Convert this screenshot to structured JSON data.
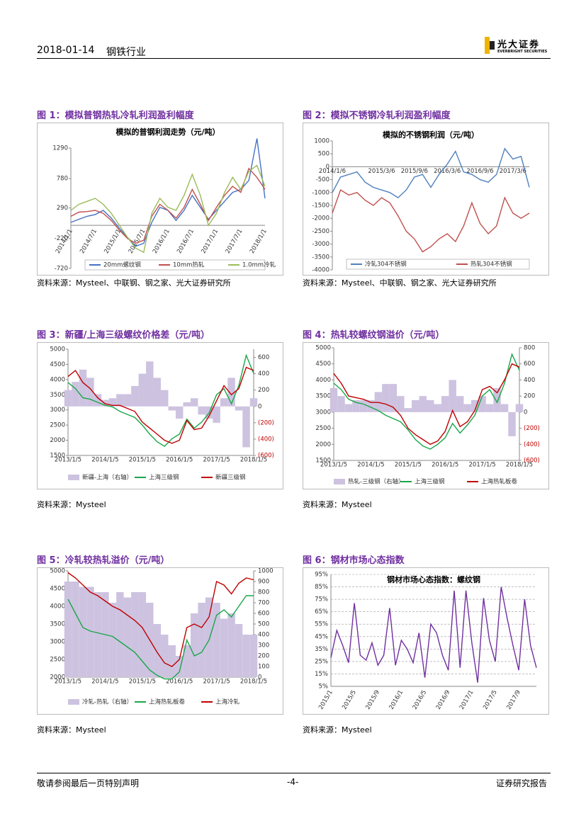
{
  "header": {
    "date": "2018-01-14",
    "industry": "钢铁行业",
    "logo_cn": "光大证券",
    "logo_en": "EVERBRIGHT SECURITIES"
  },
  "footer": {
    "left": "敬请参阅最后一页特别声明",
    "page": "-4-",
    "right": "证券研究报告"
  },
  "figures": [
    {
      "caption": "图 1：模拟普钢热轧冷轧利润盈利幅度",
      "source": "资料来源：Mysteel、中联钢、钢之家、光大证券研究所",
      "chart": {
        "type": "line",
        "title": "模拟的普钢利润走势（元/吨）",
        "categories": [
          "2014/1/1",
          null,
          null,
          "2014/7/1",
          null,
          null,
          "2015/1/1",
          null,
          null,
          "2015/7/1",
          null,
          null,
          "2016/1/1",
          null,
          null,
          "2016/7/1",
          null,
          null,
          "2017/1/1",
          null,
          null,
          "2017/7/1",
          null,
          null,
          "2018/1/1"
        ],
        "ylim": [
          -720,
          1290
        ],
        "yticks": [
          -720,
          -220,
          290,
          780,
          1290
        ],
        "legend": "bottom",
        "series": [
          {
            "name": "20mm螺纹钢",
            "color": "#4472c4",
            "values": [
              50,
              100,
              150,
              180,
              250,
              120,
              -50,
              -200,
              -350,
              -300,
              50,
              300,
              250,
              80,
              250,
              500,
              300,
              100,
              250,
              400,
              550,
              600,
              750,
              1450,
              450
            ]
          },
          {
            "name": "10mm热轧",
            "color": "#c0504d",
            "values": [
              150,
              220,
              230,
              250,
              200,
              80,
              -80,
              -220,
              -300,
              -250,
              150,
              350,
              250,
              120,
              300,
              600,
              350,
              80,
              300,
              500,
              650,
              550,
              950,
              800,
              600
            ]
          },
          {
            "name": "1.0mm冷轧",
            "color": "#9bbb59",
            "values": [
              250,
              350,
              400,
              450,
              350,
              200,
              0,
              -200,
              -380,
              -450,
              200,
              450,
              300,
              250,
              500,
              850,
              500,
              0,
              200,
              550,
              800,
              600,
              900,
              1000,
              650
            ]
          }
        ]
      }
    },
    {
      "caption": "图 2：模拟不锈钢冷轧利润盈利幅度",
      "source": "资料来源：Mysteel、中联钢、钢之家、光大证券研究所",
      "chart": {
        "type": "line",
        "title": "模拟的不锈钢利润（元/吨）",
        "categories": [
          "2014/1/6",
          null,
          null,
          null,
          null,
          null,
          "2015/3/6",
          null,
          null,
          null,
          "2015/9/6",
          null,
          null,
          null,
          "2016/3/6",
          null,
          null,
          null,
          "2016/9/6",
          null,
          null,
          null,
          "2017/3/6",
          null,
          null
        ],
        "ylim": [
          -4000,
          1000
        ],
        "yticks": [
          -4000,
          -3500,
          -3000,
          -2500,
          -2000,
          -1500,
          -1000,
          -500,
          0,
          500,
          1000
        ],
        "legend": "bottom",
        "series": [
          {
            "name": "冷轧304不锈钢",
            "color": "#4f81bd",
            "values": [
              -1000,
              -400,
              -300,
              -200,
              -600,
              -800,
              -900,
              -1000,
              -1200,
              -900,
              -400,
              -300,
              -800,
              -300,
              100,
              600,
              -200,
              -300,
              -500,
              -600,
              -300,
              700,
              300,
              400,
              -800
            ]
          },
          {
            "name": "热轧304不锈钢",
            "color": "#c0504d",
            "values": [
              -1800,
              -900,
              -1100,
              -1000,
              -1300,
              -1500,
              -1200,
              -1400,
              -1900,
              -2500,
              -2800,
              -3300,
              -3100,
              -2800,
              -2600,
              -2900,
              -2300,
              -1400,
              -2200,
              -2600,
              -2300,
              -1200,
              -1800,
              -2000,
              -1800
            ]
          }
        ]
      }
    },
    {
      "caption": "图 3：新疆/上海三级螺纹价格差（元/吨）",
      "source": "资料来源：Mysteel",
      "chart": {
        "type": "line",
        "categories": [
          "2013/1/5",
          null,
          null,
          null,
          null,
          "2014/1/5",
          null,
          null,
          null,
          null,
          "2015/1/5",
          null,
          null,
          null,
          null,
          "2016/1/5",
          null,
          null,
          null,
          null,
          "2017/1/5",
          null,
          null,
          null,
          null,
          "2018/1/5"
        ],
        "ylim": [
          1500,
          5000
        ],
        "yticks": [
          1500,
          2000,
          2500,
          3000,
          3500,
          4000,
          4500,
          5000
        ],
        "y2lim": [
          -600,
          700
        ],
        "y2ticks": [
          {
            "value": -600,
            "label": "(600)"
          },
          {
            "value": -400,
            "label": "(400)"
          },
          {
            "value": -200,
            "label": "(200)"
          },
          0,
          200,
          400,
          600
        ],
        "legend": "bottom",
        "series": [
          {
            "name": "新疆-上海（右轴）",
            "type": "area",
            "axis": "y2",
            "color": "#cdc3e0",
            "values": [
              200,
              300,
              450,
              350,
              150,
              80,
              100,
              150,
              150,
              250,
              400,
              550,
              350,
              200,
              -50,
              -150,
              50,
              100,
              -100,
              -150,
              -200,
              100,
              350,
              -50,
              -500,
              100
            ]
          },
          {
            "name": "上海三级钢",
            "color": "#1aa64a",
            "values": [
              3900,
              3700,
              3400,
              3350,
              3250,
              3150,
              3100,
              2950,
              2850,
              2750,
              2500,
              2200,
              1950,
              1800,
              2050,
              2200,
              2700,
              2400,
              2600,
              2900,
              3500,
              3700,
              3200,
              3800,
              4800,
              4200
            ]
          },
          {
            "name": "新疆三级钢",
            "color": "#c00000",
            "values": [
              4100,
              4300,
              3900,
              3700,
              3400,
              3200,
              3150,
              3150,
              3050,
              2950,
              2600,
              2400,
              2200,
              2000,
              1900,
              2000,
              2650,
              2350,
              2400,
              2800,
              3300,
              3800,
              3500,
              3700,
              4400,
              4300
            ]
          }
        ]
      }
    },
    {
      "caption": "图 4：热轧较螺纹钢溢价（元/吨）",
      "source": "资料来源：Mysteel",
      "chart": {
        "type": "line",
        "categories": [
          "2013/1/5",
          null,
          null,
          null,
          null,
          "2014/1/5",
          null,
          null,
          null,
          null,
          "2015/1/5",
          null,
          null,
          null,
          null,
          "2016/1/5",
          null,
          null,
          null,
          null,
          "2017/1/5",
          null,
          null,
          null,
          null,
          "2018/1/5"
        ],
        "ylim": [
          1500,
          5000
        ],
        "yticks": [
          1500,
          2000,
          2500,
          3000,
          3500,
          4000,
          4500,
          5000
        ],
        "y2lim": [
          -600,
          800
        ],
        "y2ticks": [
          {
            "value": -600,
            "label": "(600)"
          },
          {
            "value": -400,
            "label": "(400)"
          },
          {
            "value": -200,
            "label": "(200)"
          },
          0,
          200,
          400,
          600,
          800
        ],
        "legend": "bottom",
        "series": [
          {
            "name": "热轧-三级钢（右轴）",
            "type": "area",
            "axis": "y2",
            "color": "#cdc3e0",
            "values": [
              300,
              200,
              100,
              150,
              150,
              150,
              250,
              350,
              350,
              200,
              50,
              150,
              200,
              150,
              100,
              200,
              400,
              200,
              100,
              150,
              200,
              100,
              300,
              100,
              -300,
              100
            ]
          },
          {
            "name": "上海三级钢",
            "color": "#1aa64a",
            "values": [
              3900,
              3700,
              3400,
              3300,
              3250,
              3150,
              3050,
              2900,
              2800,
              2700,
              2450,
              2150,
              1950,
              1850,
              2000,
              2200,
              2650,
              2350,
              2600,
              2900,
              3500,
              3700,
              3300,
              3900,
              4800,
              4300
            ]
          },
          {
            "name": "上海热轧板卷",
            "color": "#c00000",
            "values": [
              4200,
              3900,
              3500,
              3450,
              3400,
              3300,
              3300,
              3250,
              3150,
              2900,
              2500,
              2300,
              2150,
              2000,
              2100,
              2400,
              3050,
              2550,
              2700,
              3050,
              3700,
              3800,
              3600,
              4000,
              4500,
              4400
            ]
          }
        ]
      }
    },
    {
      "caption": "图 5：冷轧较热轧溢价（元/吨）",
      "source": "资料来源：Mysteel",
      "chart": {
        "type": "line",
        "categories": [
          "2013/1/5",
          null,
          null,
          null,
          null,
          "2014/1/5",
          null,
          null,
          null,
          null,
          "2015/1/5",
          null,
          null,
          null,
          null,
          "2016/1/5",
          null,
          null,
          null,
          null,
          "2017/1/5",
          null,
          null,
          null,
          null,
          "2018/1/5"
        ],
        "ylim": [
          2000,
          5000
        ],
        "yticks": [
          2000,
          2500,
          3000,
          3500,
          4000,
          4500,
          5000
        ],
        "y2lim": [
          0,
          1000
        ],
        "y2ticks": [
          0,
          100,
          200,
          300,
          400,
          500,
          600,
          700,
          800,
          900,
          1000
        ],
        "legend": "bottom",
        "series": [
          {
            "name": "冷轧-热轧（右轴）",
            "type": "area",
            "axis": "y2",
            "color": "#cdc3e0",
            "values": [
              900,
              900,
              850,
              850,
              800,
              800,
              700,
              800,
              750,
              800,
              800,
              700,
              500,
              400,
              300,
              200,
              300,
              600,
              700,
              750,
              700,
              550,
              600,
              500,
              400,
              400
            ]
          },
          {
            "name": "上海热轧板卷",
            "color": "#1aa64a",
            "values": [
              4200,
              3800,
              3400,
              3300,
              3250,
              3200,
              3150,
              3000,
              2850,
              2700,
              2450,
              2200,
              2050,
              1950,
              1950,
              2150,
              3050,
              2600,
              2700,
              3050,
              3750,
              3900,
              3700,
              4000,
              4300,
              4300
            ]
          },
          {
            "name": "上海冷轧",
            "color": "#c00000",
            "values": [
              4950,
              4800,
              4600,
              4400,
              4300,
              4150,
              4000,
              3900,
              3750,
              3600,
              3400,
              3050,
              2700,
              2400,
              2300,
              2500,
              3400,
              3500,
              3400,
              3700,
              4700,
              4600,
              4350,
              4650,
              4800,
              4750
            ]
          }
        ]
      }
    },
    {
      "caption": "图 6：钢材市场心态指数",
      "source": "资料来源：Mysteel",
      "chart": {
        "type": "line",
        "title": "钢材市场心态指数：螺纹钢",
        "categories": [
          "2015/1",
          null,
          null,
          null,
          "2015/5",
          null,
          null,
          null,
          "2015/9",
          null,
          null,
          null,
          "2016/1",
          null,
          null,
          null,
          "2016/5",
          null,
          null,
          null,
          "2016/9",
          null,
          null,
          null,
          "2017/1",
          null,
          null,
          null,
          "2017/5",
          null,
          null,
          null,
          "2017/9",
          null,
          null,
          null
        ],
        "ylim": [
          5,
          95
        ],
        "yticks": [
          {
            "value": 5,
            "label": "5%"
          },
          {
            "value": 15,
            "label": "15%"
          },
          {
            "value": 25,
            "label": "25%"
          },
          {
            "value": 35,
            "label": "35%"
          },
          {
            "value": 45,
            "label": "45%"
          },
          {
            "value": 55,
            "label": "55%"
          },
          {
            "value": 65,
            "label": "65%"
          },
          {
            "value": 75,
            "label": "75%"
          },
          {
            "value": 85,
            "label": "85%"
          },
          {
            "value": 95,
            "label": "95%"
          }
        ],
        "grid": true,
        "series": [
          {
            "color": "#7030a0",
            "values": [
              28,
              50,
              38,
              24,
              72,
              30,
              26,
              40,
              22,
              30,
              68,
              22,
              42,
              35,
              24,
              48,
              12,
              55,
              48,
              30,
              18,
              82,
              20,
              82,
              40,
              8,
              76,
              42,
              25,
              85,
              60,
              38,
              18,
              75,
              38,
              20
            ]
          }
        ]
      }
    }
  ]
}
